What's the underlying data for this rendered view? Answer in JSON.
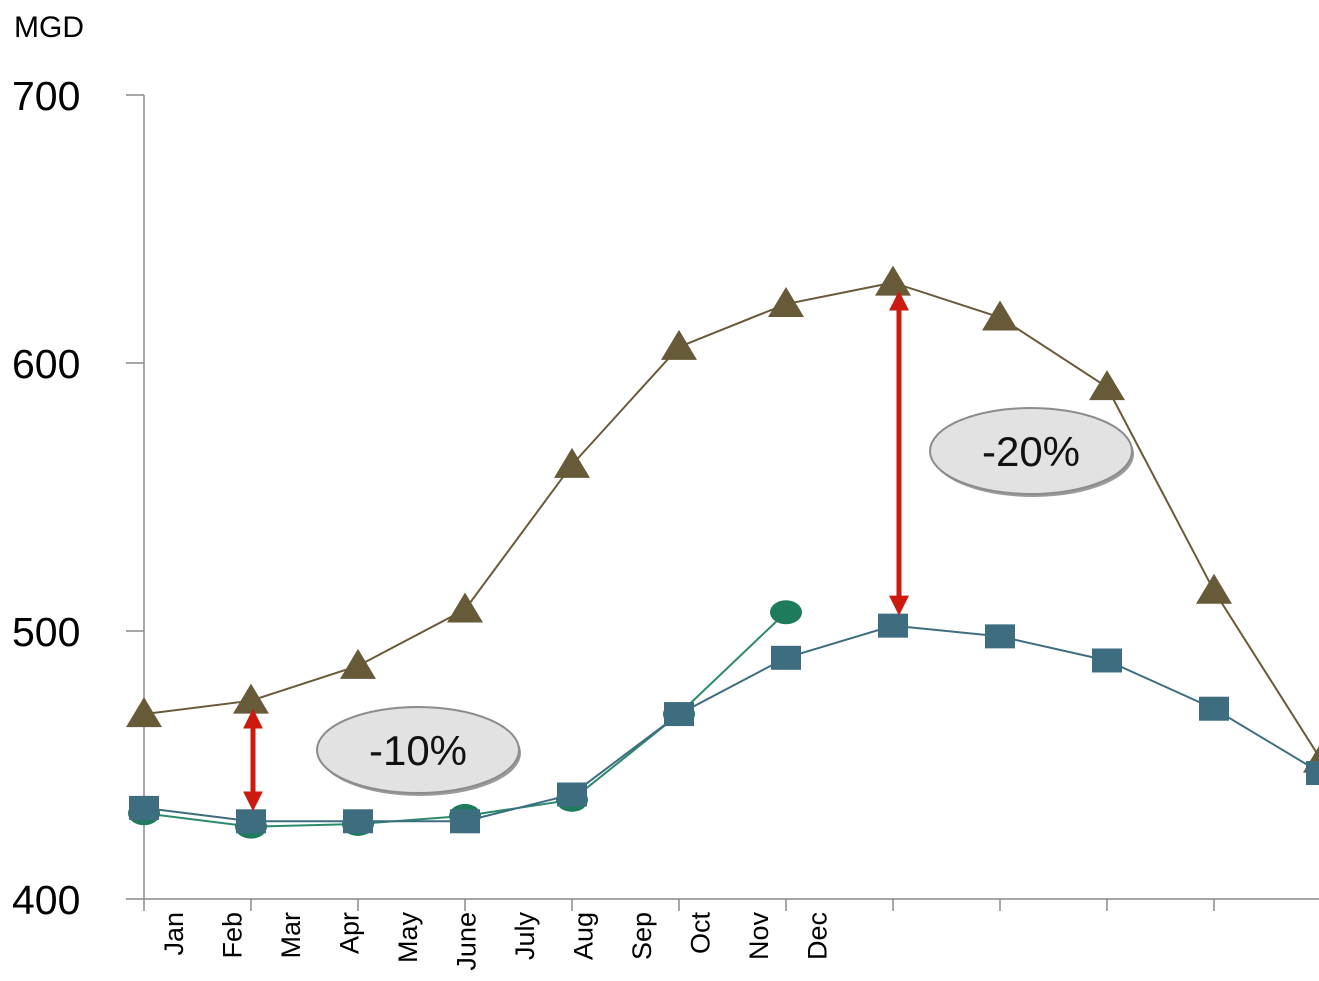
{
  "chart_data": {
    "type": "line",
    "ylabel": "MGD",
    "ylim": [
      400,
      700
    ],
    "yticks": [
      400,
      500,
      600,
      700
    ],
    "xlabels": [
      "Jan",
      "Feb",
      "Mar",
      "Apr",
      "May",
      "June",
      "July",
      "Aug",
      "Sep",
      "Oct",
      "Nov",
      "Dec"
    ],
    "grid": false,
    "legend": "none",
    "series": [
      {
        "marker": "triangle",
        "color": "#675a39",
        "line_color": "#6b5a3a",
        "values": [
          469,
          474,
          487,
          508,
          562,
          606,
          622,
          630,
          617,
          591,
          515,
          452
        ]
      },
      {
        "marker": "circle",
        "color": "#1e7c5c",
        "line_color": "#2b8a6e",
        "values": [
          432,
          427,
          428,
          431,
          437,
          469,
          507
        ]
      },
      {
        "marker": "square",
        "color": "#3e6d80",
        "line_color": "#3e6d80",
        "values": [
          434,
          429,
          429,
          429,
          439,
          469,
          490,
          502,
          498,
          489,
          471,
          447
        ]
      }
    ],
    "annotations": [
      {
        "label": "-10%",
        "index": 1,
        "from": 474,
        "to": 429
      },
      {
        "label": "-20%",
        "index": 7,
        "from": 630,
        "to": 502
      }
    ]
  }
}
